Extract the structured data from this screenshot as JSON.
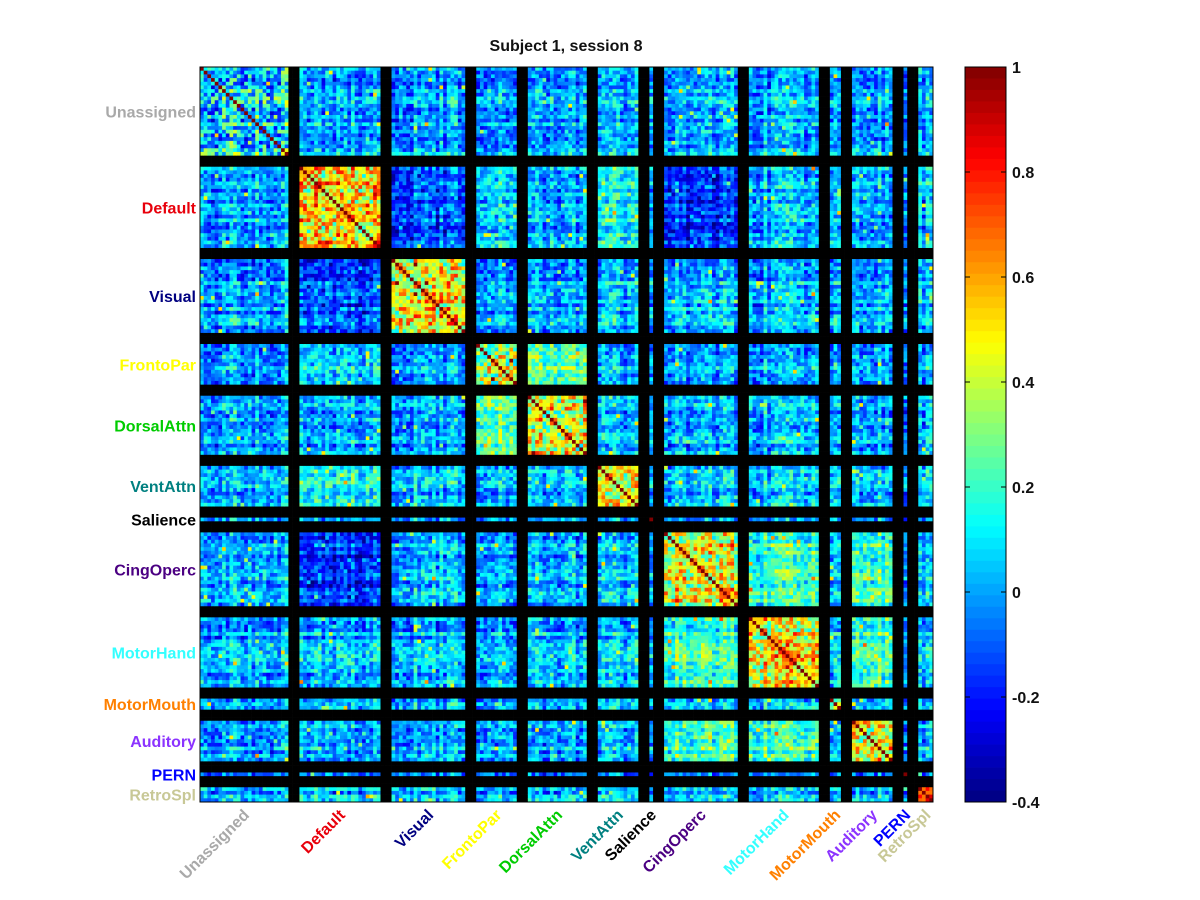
{
  "chart_data": {
    "type": "heatmap",
    "title": "Subject 1, session 8",
    "colormap": "jet",
    "color_range": [
      -0.4,
      1
    ],
    "colorbar_ticks": [
      1,
      0.8,
      0.6,
      0.4,
      0.2,
      0,
      -0.2,
      -0.4
    ],
    "colorbar_tick_labels": [
      "1",
      "0.8",
      "0.6",
      "0.4",
      "0.2",
      "0",
      "-0.2",
      "-0.4"
    ],
    "separator_color": "#000000",
    "networks": [
      {
        "name": "Unassigned",
        "color": "#a9a9a9",
        "size": 24,
        "within": 0.12
      },
      {
        "name": "Default",
        "color": "#e8000b",
        "size": 22,
        "within": 0.52
      },
      {
        "name": "Visual",
        "color": "#000080",
        "size": 20,
        "within": 0.48
      },
      {
        "name": "FrontoPar",
        "color": "#ffff00",
        "size": 11,
        "within": 0.45
      },
      {
        "name": "DorsalAttn",
        "color": "#00cc00",
        "size": 16,
        "within": 0.45
      },
      {
        "name": "VentAttn",
        "color": "#008080",
        "size": 11,
        "within": 0.38
      },
      {
        "name": "Salience",
        "color": "#000000",
        "size": 1,
        "within": 0.3
      },
      {
        "name": "CingOperc",
        "color": "#4b0082",
        "size": 20,
        "within": 0.42
      },
      {
        "name": "MotorHand",
        "color": "#33ffff",
        "size": 19,
        "within": 0.45
      },
      {
        "name": "MotorMouth",
        "color": "#ff8000",
        "size": 3,
        "within": 0.35
      },
      {
        "name": "Auditory",
        "color": "#8b33ff",
        "size": 11,
        "within": 0.5
      },
      {
        "name": "PERN",
        "color": "#0000ff",
        "size": 1,
        "within": 0.3
      },
      {
        "name": "RetroSpl",
        "color": "#c8c896",
        "size": 4,
        "within": 0.5
      }
    ],
    "between_network_means": {
      "Default-CingOperc": -0.18,
      "Default-Visual": -0.12,
      "FrontoPar-DorsalAttn": 0.3,
      "CingOperc-MotorHand": 0.18,
      "CingOperc-Auditory": 0.2,
      "MotorHand-Auditory": 0.2,
      "Default-FrontoPar": 0.1,
      "Default-VentAttn": 0.12
    }
  }
}
